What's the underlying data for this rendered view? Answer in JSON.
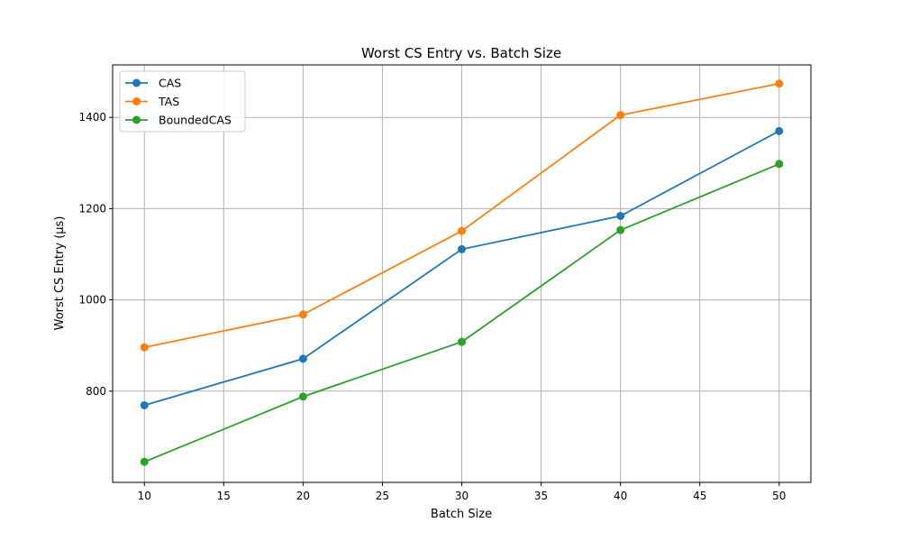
{
  "chart_data": {
    "type": "line",
    "title": "Worst CS Entry vs. Batch Size",
    "xlabel": "Batch Size",
    "ylabel": "Worst CS Entry (µs)",
    "x": [
      10,
      20,
      30,
      40,
      50
    ],
    "xticks": [
      10,
      15,
      20,
      25,
      30,
      35,
      40,
      45,
      50
    ],
    "yticks": [
      800,
      1000,
      1200,
      1400
    ],
    "xlim": [
      8,
      52
    ],
    "ylim": [
      600,
      1515
    ],
    "grid": true,
    "legend_position": "top-left",
    "series": [
      {
        "name": "CAS",
        "color": "#1f77b4",
        "values": [
          769,
          871,
          1111,
          1184,
          1370
        ]
      },
      {
        "name": "TAS",
        "color": "#ff7f0e",
        "values": [
          896,
          968,
          1151,
          1405,
          1474
        ]
      },
      {
        "name": "BoundedCAS",
        "color": "#2ca02c",
        "values": [
          645,
          788,
          908,
          1153,
          1298
        ]
      }
    ]
  }
}
